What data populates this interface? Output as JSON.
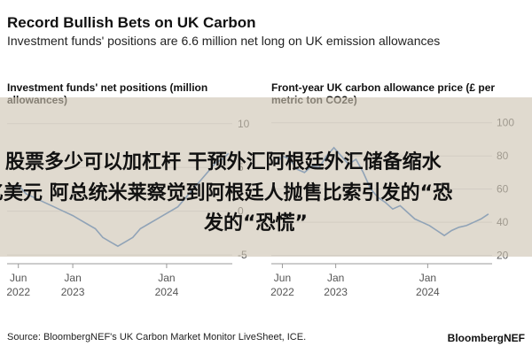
{
  "header": {
    "title": "Record Bullish Bets on UK Carbon",
    "subtitle": "Investment funds' positions are 6.6 million net long on UK emission allowances"
  },
  "chart_data": [
    {
      "type": "line",
      "title": "Investment funds' net positions (million allowances)",
      "xlabel": "",
      "ylabel": "",
      "x_ticks": [
        {
          "label": "Jun",
          "sub": "2022",
          "t": 2022.42
        },
        {
          "label": "Jan",
          "sub": "2023",
          "t": 2023.0
        },
        {
          "label": "Jan",
          "sub": "2024",
          "t": 2024.0
        }
      ],
      "y_ticks": [
        10,
        5,
        0,
        -5
      ],
      "xlim": [
        2022.3,
        2024.7
      ],
      "ylim": [
        -6,
        12
      ],
      "color": "#2f6fbf",
      "series": [
        {
          "x": [
            2022.35,
            2022.42,
            2022.5,
            2022.6,
            2022.7,
            2022.8,
            2022.9,
            2023.0,
            2023.08,
            2023.16,
            2023.24,
            2023.32,
            2023.4,
            2023.48,
            2023.56,
            2023.64,
            2023.72,
            2023.8,
            2023.88,
            2023.96,
            2024.04,
            2024.12,
            2024.2,
            2024.28,
            2024.36,
            2024.44,
            2024.52,
            2024.6,
            2024.66
          ],
          "y": [
            2.5,
            3.0,
            2.0,
            1.5,
            1.0,
            0.5,
            0.0,
            -0.5,
            -1.0,
            -1.5,
            -2.0,
            -3.0,
            -3.5,
            -4.0,
            -3.5,
            -3.0,
            -2.0,
            -1.5,
            -1.0,
            -0.5,
            0.0,
            0.5,
            1.5,
            2.5,
            3.5,
            4.5,
            5.5,
            6.0,
            6.6
          ]
        }
      ]
    },
    {
      "type": "line",
      "title": "Front-year UK carbon allowance price (£ per metric ton CO2e)",
      "xlabel": "",
      "ylabel": "",
      "x_ticks": [
        {
          "label": "Jun",
          "sub": "2022",
          "t": 2022.42
        },
        {
          "label": "Jan",
          "sub": "2023",
          "t": 2023.0
        },
        {
          "label": "Jan",
          "sub": "2024",
          "t": 2024.0
        }
      ],
      "y_ticks": [
        100,
        80,
        60,
        40,
        20
      ],
      "xlim": [
        2022.3,
        2024.7
      ],
      "ylim": [
        15,
        110
      ],
      "color": "#2f6fbf",
      "series": [
        {
          "x": [
            2022.35,
            2022.42,
            2022.5,
            2022.58,
            2022.66,
            2022.74,
            2022.82,
            2022.9,
            2022.98,
            2023.06,
            2023.14,
            2023.22,
            2023.3,
            2023.38,
            2023.46,
            2023.54,
            2023.62,
            2023.7,
            2023.78,
            2023.86,
            2023.94,
            2024.02,
            2024.1,
            2024.18,
            2024.26,
            2024.34,
            2024.42,
            2024.5,
            2024.58,
            2024.66
          ],
          "y": [
            75,
            80,
            78,
            72,
            70,
            74,
            73,
            80,
            85,
            80,
            75,
            78,
            70,
            60,
            55,
            52,
            48,
            50,
            46,
            42,
            40,
            38,
            35,
            32,
            35,
            37,
            38,
            40,
            42,
            45
          ]
        }
      ]
    }
  ],
  "overlay": {
    "line1": "股票多少可以加杠杆 干预外汇阿根廷外汇储备缩水",
    "line2": "亿美元 阿总统米莱察觉到阿根廷人抛售比索引发的“恐",
    "line3": "发的“恐慌”"
  },
  "footer": {
    "source": "Source: BloombergNEF's UK Carbon Market Monitor LiveSheet, ICE.",
    "brand": "BloombergNEF"
  }
}
